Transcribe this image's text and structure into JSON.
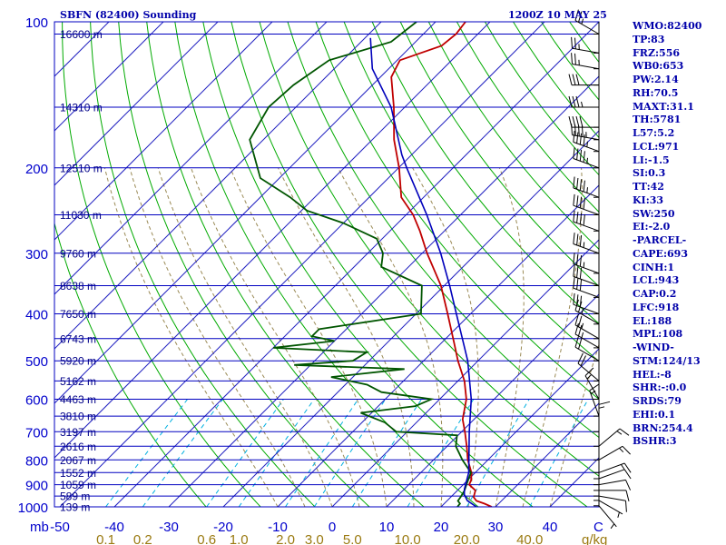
{
  "header": {
    "station": "SBFN (82400) Sounding",
    "time": "1200Z 10 MAY 25"
  },
  "colors": {
    "isobar": "#0000c0",
    "isotherm": "#2020c0",
    "dry_adiabat": "#00aa00",
    "moist_adiabat": "#9a8a55",
    "mixing_ratio": "#00b0e0",
    "temperature": "#c00000",
    "dewpoint": "#005500",
    "parcel": "#0000bb",
    "wind": "#000000"
  },
  "chart_data": {
    "type": "line",
    "title": "SBFN (82400) Sounding",
    "subtitle": "1200Z 10 MAY 25",
    "y_axis": {
      "unit": "mb",
      "scale": "log",
      "range": [
        1000,
        100
      ],
      "ticks": [
        100,
        200,
        300,
        400,
        500,
        600,
        700,
        800,
        900,
        1000
      ]
    },
    "x_axis": {
      "unit": "C",
      "skewed": true,
      "range": [
        -50,
        50
      ],
      "ticks": [
        -50,
        -40,
        -30,
        -20,
        -10,
        0,
        10,
        20,
        30,
        40
      ]
    },
    "mixing_ratio_axis": {
      "unit": "g/kg",
      "ticks": [
        0.1,
        0.2,
        0.6,
        1.0,
        2.0,
        3.0,
        5.0,
        10.0,
        20.0,
        40.0
      ]
    },
    "height_levels": [
      {
        "p": 106,
        "label": "16600 m"
      },
      {
        "p": 150,
        "label": "14310 m"
      },
      {
        "p": 200,
        "label": "12510 m"
      },
      {
        "p": 250,
        "label": "11030 m"
      },
      {
        "p": 300,
        "label": "9760 m"
      },
      {
        "p": 350,
        "label": "8638 m"
      },
      {
        "p": 400,
        "label": "7650 m"
      },
      {
        "p": 450,
        "label": "6743 m"
      },
      {
        "p": 500,
        "label": "5920 m"
      },
      {
        "p": 550,
        "label": "5162 m"
      },
      {
        "p": 600,
        "label": "4463 m"
      },
      {
        "p": 650,
        "label": "3810 m"
      },
      {
        "p": 700,
        "label": "3197 m"
      },
      {
        "p": 750,
        "label": "2616 m"
      },
      {
        "p": 800,
        "label": "2067 m"
      },
      {
        "p": 850,
        "label": "1552 m"
      },
      {
        "p": 900,
        "label": "1059 m"
      },
      {
        "p": 950,
        "label": "589 m"
      },
      {
        "p": 1000,
        "label": "139 m"
      }
    ],
    "series": [
      {
        "name": "Temperature",
        "points": [
          [
            1000,
            29.3
          ],
          [
            985,
            27.4
          ],
          [
            972,
            25.4
          ],
          [
            955,
            24.2
          ],
          [
            925,
            23.3
          ],
          [
            900,
            21.1
          ],
          [
            880,
            20.6
          ],
          [
            850,
            19.3
          ],
          [
            800,
            16.3
          ],
          [
            750,
            13.6
          ],
          [
            700,
            10.6
          ],
          [
            660,
            7.9
          ],
          [
            600,
            4.9
          ],
          [
            550,
            1.2
          ],
          [
            500,
            -3.7
          ],
          [
            460,
            -7.6
          ],
          [
            420,
            -11.9
          ],
          [
            400,
            -14.2
          ],
          [
            350,
            -20.6
          ],
          [
            300,
            -29.1
          ],
          [
            270,
            -34.5
          ],
          [
            250,
            -38.7
          ],
          [
            230,
            -44.1
          ],
          [
            200,
            -49.9
          ],
          [
            175,
            -56.0
          ],
          [
            150,
            -62.0
          ],
          [
            130,
            -68.0
          ],
          [
            120,
            -69.5
          ],
          [
            112,
            -64.5
          ],
          [
            106,
            -64.0
          ],
          [
            100,
            -64.5
          ]
        ]
      },
      {
        "name": "Dewpoint",
        "points": [
          [
            1000,
            23.0
          ],
          [
            985,
            22.9
          ],
          [
            972,
            22.0
          ],
          [
            955,
            21.8
          ],
          [
            925,
            21.3
          ],
          [
            900,
            20.6
          ],
          [
            850,
            19.2
          ],
          [
            800,
            15.3
          ],
          [
            750,
            11.6
          ],
          [
            712,
            9.8
          ],
          [
            700,
            -2.0
          ],
          [
            670,
            -5.8
          ],
          [
            640,
            -12.0
          ],
          [
            620,
            -3.2
          ],
          [
            600,
            -1.5
          ],
          [
            580,
            -12.0
          ],
          [
            560,
            -16.0
          ],
          [
            540,
            -24.0
          ],
          [
            520,
            -12.0
          ],
          [
            510,
            -33.0
          ],
          [
            500,
            -23.0
          ],
          [
            480,
            -22.0
          ],
          [
            470,
            -40.0
          ],
          [
            455,
            -30.0
          ],
          [
            445,
            -35.0
          ],
          [
            430,
            -35.0
          ],
          [
            400,
            -19.1
          ],
          [
            350,
            -24.1
          ],
          [
            320,
            -35.0
          ],
          [
            300,
            -37.2
          ],
          [
            280,
            -41.0
          ],
          [
            260,
            -50.0
          ],
          [
            245,
            -59.0
          ],
          [
            230,
            -64.5
          ],
          [
            210,
            -73.5
          ],
          [
            175,
            -82.5
          ],
          [
            150,
            -85.0
          ],
          [
            135,
            -84.5
          ],
          [
            120,
            -82.5
          ],
          [
            110,
            -74.5
          ],
          [
            100,
            -73.5
          ]
        ]
      },
      {
        "name": "Parcel",
        "points": [
          [
            1000,
            26.5
          ],
          [
            971,
            23.7
          ],
          [
            943,
            22.0
          ],
          [
            918,
            21.0
          ],
          [
            850,
            18.8
          ],
          [
            800,
            16.5
          ],
          [
            700,
            11.4
          ],
          [
            600,
            5.8
          ],
          [
            500,
            -1.9
          ],
          [
            400,
            -12.6
          ],
          [
            350,
            -19.0
          ],
          [
            300,
            -26.6
          ],
          [
            250,
            -36.2
          ],
          [
            200,
            -48.5
          ],
          [
            188,
            -51.8
          ],
          [
            150,
            -62.5
          ],
          [
            125,
            -73.0
          ],
          [
            108,
            -79.0
          ]
        ]
      }
    ],
    "wind_barbs": [
      [
        995,
        140,
        5
      ],
      [
        970,
        120,
        5
      ],
      [
        950,
        100,
        10
      ],
      [
        925,
        90,
        10
      ],
      [
        900,
        80,
        10
      ],
      [
        875,
        70,
        10
      ],
      [
        850,
        70,
        15
      ],
      [
        800,
        60,
        15
      ],
      [
        750,
        50,
        15
      ],
      [
        700,
        360,
        15
      ],
      [
        650,
        340,
        15
      ],
      [
        600,
        330,
        15
      ],
      [
        550,
        310,
        20
      ],
      [
        500,
        300,
        20
      ],
      [
        470,
        300,
        25
      ],
      [
        450,
        300,
        25
      ],
      [
        420,
        300,
        25
      ],
      [
        400,
        290,
        30
      ],
      [
        370,
        290,
        30
      ],
      [
        350,
        290,
        30
      ],
      [
        330,
        290,
        35
      ],
      [
        300,
        290,
        35
      ],
      [
        270,
        290,
        40
      ],
      [
        250,
        290,
        40
      ],
      [
        230,
        290,
        45
      ],
      [
        200,
        290,
        45
      ],
      [
        185,
        290,
        45
      ],
      [
        175,
        280,
        45
      ],
      [
        165,
        270,
        40
      ],
      [
        150,
        270,
        35
      ],
      [
        135,
        270,
        30
      ],
      [
        125,
        280,
        25
      ],
      [
        116,
        280,
        25
      ],
      [
        106,
        300,
        25
      ]
    ]
  },
  "indices": [
    "WMO:82400",
    "TP:83",
    "FRZ:556",
    "WB0:653",
    "PW:2.14",
    "RH:70.5",
    "MAXT:31.1",
    "TH:5781",
    "L57:5.2",
    "LCL:971",
    "LI:-1.5",
    "SI:0.3",
    "TT:42",
    "KI:33",
    "SW:250",
    "EI:-2.0",
    "-PARCEL-",
    "CAPE:693",
    "CINH:1",
    "LCL:943",
    "CAP:0.2",
    "LFC:918",
    "EL:188",
    "MPL:108",
    "-WIND-",
    "STM:124/13",
    "HEL:-8",
    "SHR:-:0.0",
    "SRDS:79",
    "EHI:0.1",
    "BRN:254.4",
    "BSHR:3"
  ]
}
